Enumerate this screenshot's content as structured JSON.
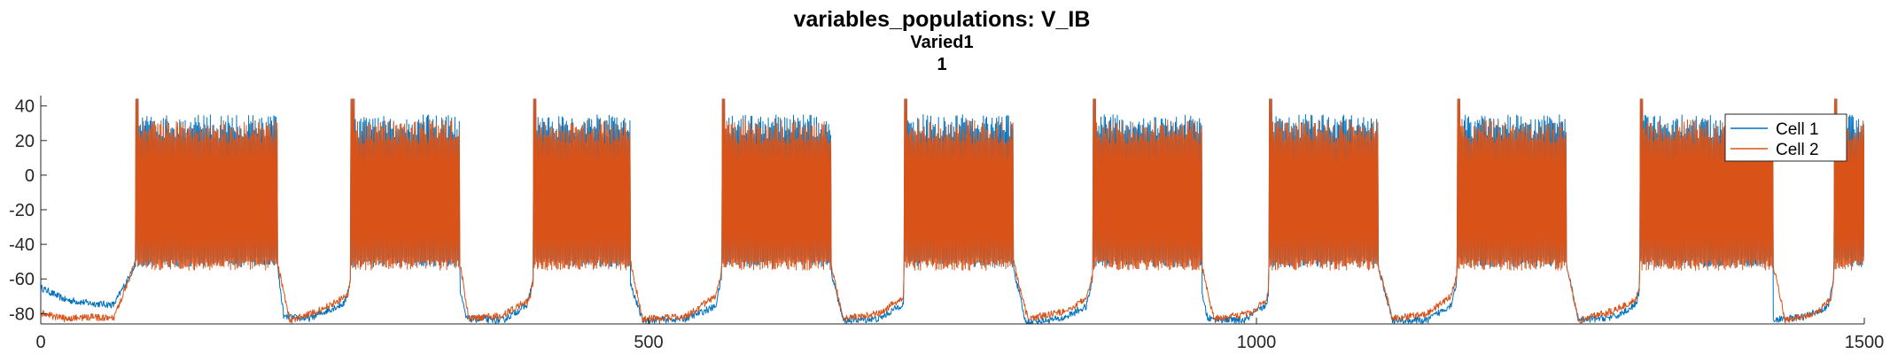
{
  "chart_data": {
    "type": "line",
    "title": "variables_populations: V_IB",
    "subtitle": [
      "Varied1",
      "1"
    ],
    "xlabel": "",
    "ylabel": "",
    "xlim": [
      0,
      1500
    ],
    "ylim": [
      -86,
      46
    ],
    "xticks": [
      0,
      500,
      1000,
      1500
    ],
    "yticks": [
      -80,
      -60,
      -40,
      -20,
      0,
      20,
      40
    ],
    "grid": false,
    "legend_position": "top-right",
    "burst_windows": [
      [
        78,
        195
      ],
      [
        255,
        345
      ],
      [
        405,
        485
      ],
      [
        560,
        650
      ],
      [
        710,
        800
      ],
      [
        865,
        955
      ],
      [
        1010,
        1100
      ],
      [
        1165,
        1255
      ],
      [
        1315,
        1425
      ],
      [
        1475,
        1500
      ]
    ],
    "series": [
      {
        "name": "Cell 1",
        "color": "#0072BD",
        "baseline_points": [
          [
            0,
            -65
          ],
          [
            20,
            -72
          ],
          [
            40,
            -74
          ],
          [
            60,
            -75
          ],
          [
            78,
            -52
          ],
          [
            195,
            -55
          ],
          [
            200,
            -82
          ],
          [
            220,
            -83
          ],
          [
            250,
            -74
          ],
          [
            258,
            -52
          ],
          [
            340,
            -52
          ],
          [
            350,
            -83
          ],
          [
            380,
            -84
          ],
          [
            400,
            -75
          ],
          [
            408,
            -52
          ],
          [
            480,
            -52
          ],
          [
            495,
            -84
          ],
          [
            530,
            -83
          ],
          [
            555,
            -76
          ],
          [
            562,
            -52
          ],
          [
            650,
            -55
          ],
          [
            660,
            -84
          ],
          [
            690,
            -83
          ],
          [
            710,
            -74
          ],
          [
            715,
            -52
          ],
          [
            800,
            -53
          ],
          [
            810,
            -85
          ],
          [
            840,
            -83
          ],
          [
            860,
            -76
          ],
          [
            868,
            -52
          ],
          [
            950,
            -55
          ],
          [
            960,
            -83
          ],
          [
            990,
            -84
          ],
          [
            1008,
            -75
          ],
          [
            1015,
            -52
          ],
          [
            1100,
            -52
          ],
          [
            1112,
            -84
          ],
          [
            1140,
            -84
          ],
          [
            1160,
            -75
          ],
          [
            1168,
            -52
          ],
          [
            1255,
            -52
          ],
          [
            1265,
            -84
          ],
          [
            1295,
            -82
          ],
          [
            1312,
            -75
          ],
          [
            1320,
            -52
          ],
          [
            1410,
            -53
          ],
          [
            1420,
            -84
          ],
          [
            1450,
            -82
          ],
          [
            1470,
            -76
          ],
          [
            1478,
            -52
          ],
          [
            1500,
            -52
          ]
        ],
        "spike_range": [
          -50,
          28
        ]
      },
      {
        "name": "Cell 2",
        "color": "#D95319",
        "baseline_points": [
          [
            0,
            -80
          ],
          [
            20,
            -83
          ],
          [
            40,
            -82
          ],
          [
            60,
            -83
          ],
          [
            78,
            -50
          ],
          [
            195,
            -52
          ],
          [
            205,
            -84
          ],
          [
            230,
            -78
          ],
          [
            252,
            -70
          ],
          [
            258,
            -50
          ],
          [
            345,
            -52
          ],
          [
            352,
            -83
          ],
          [
            380,
            -81
          ],
          [
            402,
            -72
          ],
          [
            408,
            -50
          ],
          [
            485,
            -50
          ],
          [
            495,
            -83
          ],
          [
            530,
            -82
          ],
          [
            555,
            -70
          ],
          [
            562,
            -50
          ],
          [
            650,
            -52
          ],
          [
            660,
            -83
          ],
          [
            690,
            -80
          ],
          [
            710,
            -70
          ],
          [
            715,
            -50
          ],
          [
            800,
            -50
          ],
          [
            812,
            -83
          ],
          [
            840,
            -79
          ],
          [
            860,
            -72
          ],
          [
            868,
            -50
          ],
          [
            955,
            -52
          ],
          [
            965,
            -83
          ],
          [
            995,
            -80
          ],
          [
            1008,
            -72
          ],
          [
            1015,
            -50
          ],
          [
            1100,
            -52
          ],
          [
            1112,
            -83
          ],
          [
            1140,
            -80
          ],
          [
            1160,
            -70
          ],
          [
            1168,
            -50
          ],
          [
            1255,
            -52
          ],
          [
            1265,
            -84
          ],
          [
            1295,
            -78
          ],
          [
            1312,
            -72
          ],
          [
            1320,
            -50
          ],
          [
            1425,
            -52
          ],
          [
            1435,
            -84
          ],
          [
            1460,
            -80
          ],
          [
            1472,
            -72
          ],
          [
            1478,
            -50
          ],
          [
            1500,
            -50
          ]
        ],
        "spike_range": [
          -52,
          25
        ]
      }
    ]
  }
}
